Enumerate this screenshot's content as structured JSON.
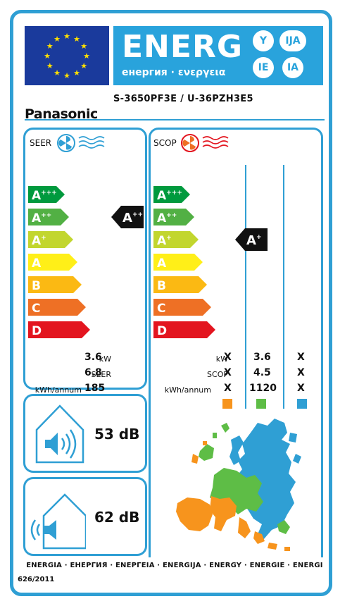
{
  "header": {
    "energy_title": "ENERG",
    "energy_sub": "енергия · ενεργεια",
    "lang_codes": [
      "Y",
      "IJA",
      "IE",
      "IA"
    ],
    "brand": "Panasonic",
    "model": "S-3650PF3E / U-36PZH3E5"
  },
  "colors": {
    "frame": "#2f9fd4",
    "energy_band": "#29a3dc",
    "eu_blue": "#1a3a9c",
    "eu_star": "#ffe000",
    "class_colors": [
      "#009a3e",
      "#52b044",
      "#c2d62e",
      "#ffef18",
      "#fbb913",
      "#ee7025",
      "#e3151f"
    ],
    "zone_warm": "#f7941d",
    "zone_average": "#5ebd46",
    "zone_cold": "#2f9fd4"
  },
  "seer_panel": {
    "title": "SEER",
    "icon": "fan-cooling-icon",
    "classes": [
      "A+++",
      "A++",
      "A+",
      "A",
      "B",
      "C",
      "D"
    ],
    "rating": "A++",
    "rows": [
      {
        "label": "kW",
        "value": "3.6"
      },
      {
        "label": "SEER",
        "value": "6.8"
      },
      {
        "label": "kWh/annum",
        "value": "185"
      }
    ]
  },
  "scop_panel": {
    "title": "SCOP",
    "icon": "fan-heating-icon",
    "classes": [
      "A+++",
      "A++",
      "A+",
      "A",
      "B",
      "C",
      "D"
    ],
    "rating": "A+",
    "rows": [
      {
        "label": "kW",
        "warm": "X",
        "average": "3.6",
        "cold": "X"
      },
      {
        "label": "SCOP",
        "warm": "X",
        "average": "4.5",
        "cold": "X"
      },
      {
        "label": "kWh/annum",
        "warm": "X",
        "average": "1120",
        "cold": "X"
      }
    ],
    "map_icon": "europe-climate-zones-map"
  },
  "noise": {
    "indoor_value": "53 dB",
    "indoor_icon": "indoor-speaker-house-icon",
    "outdoor_value": "62 dB",
    "outdoor_icon": "outdoor-speaker-house-icon"
  },
  "footer": {
    "languages": "ENERGIA · ЕНЕРГИЯ · ΕΝΕΡΓΕΙΑ · ENERGIJA · ENERGY · ENERGIE · ENERGI",
    "regulation": "626/2011"
  }
}
